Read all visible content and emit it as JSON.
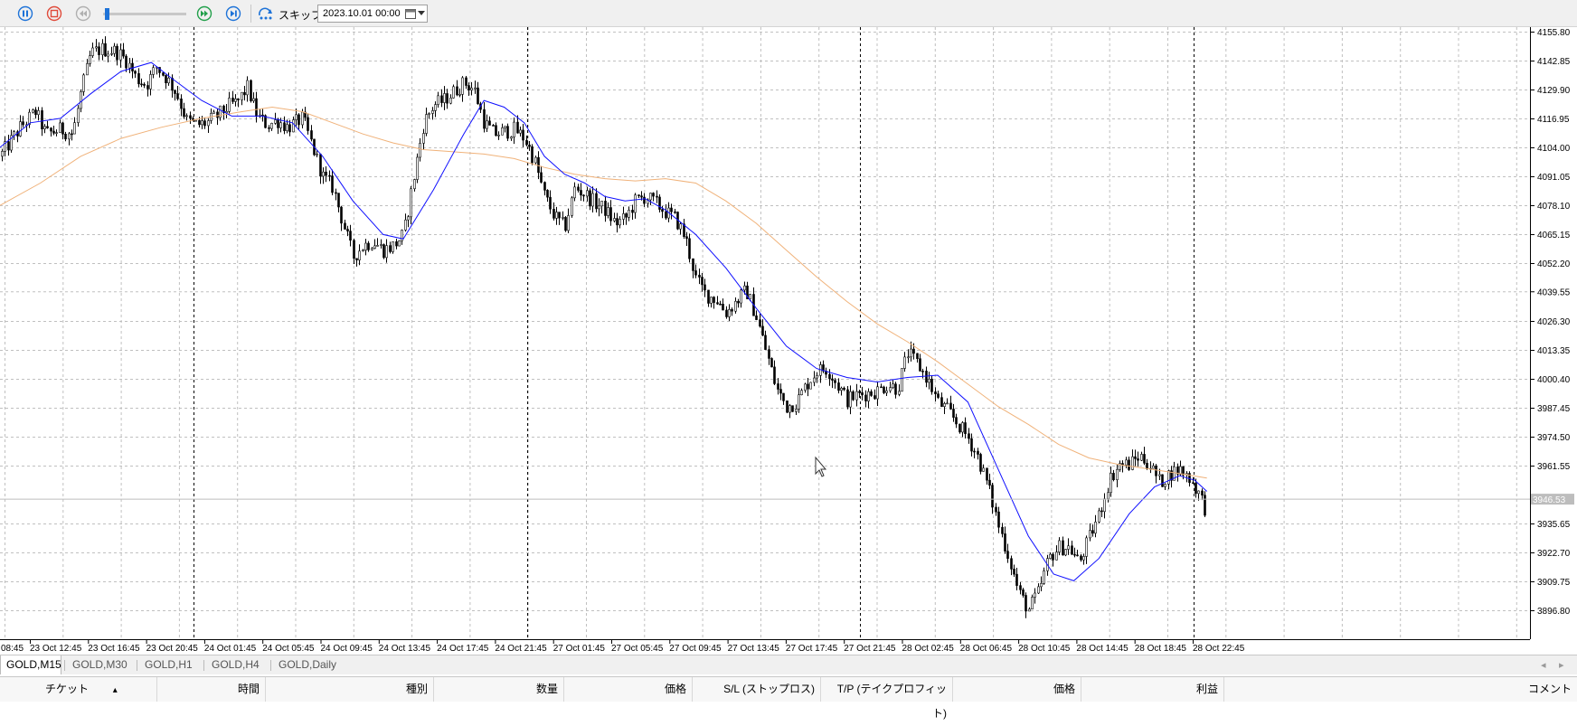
{
  "toolbar": {
    "buttons": [
      {
        "name": "pause-button",
        "icon": "pause-icon",
        "color": "#1e73d8"
      },
      {
        "name": "stop-button",
        "icon": "stop-icon",
        "color": "#e04a3a"
      },
      {
        "name": "rewind-button",
        "icon": "rewind-icon",
        "color": "#b0b0b0"
      },
      {
        "name": "fast-forward-button",
        "icon": "fast-forward-icon",
        "color": "#22a04b"
      },
      {
        "name": "step-forward-button",
        "icon": "step-forward-icon",
        "color": "#1e73d8"
      }
    ],
    "speed_level": 0.02,
    "skip_label": "スキップ",
    "date_value": "2023.10.01 00:00"
  },
  "chart_data": {
    "type": "candlestick",
    "symbol": "GOLD",
    "timeframe": "M15",
    "ylim": [
      3885.0,
      4161.0
    ],
    "y_ticks": [
      "4155.80",
      "4142.85",
      "4129.90",
      "4116.95",
      "4104.00",
      "4091.05",
      "4078.10",
      "4065.15",
      "4052.20",
      "4039.55",
      "4026.30",
      "4013.35",
      "4000.40",
      "3987.45",
      "3974.50",
      "3961.55",
      "3935.65",
      "3922.70",
      "3909.75",
      "3896.80"
    ],
    "current_price": "3946.53",
    "current_price_value": 3946.53,
    "x_tick_labels": [
      "08:45",
      "23 Oct 12:45",
      "23 Oct 16:45",
      "23 Oct 20:45",
      "24 Oct 01:45",
      "24 Oct 05:45",
      "24 Oct 09:45",
      "24 Oct 13:45",
      "24 Oct 17:45",
      "24 Oct 21:45",
      "27 Oct 01:45",
      "27 Oct 05:45",
      "27 Oct 09:45",
      "27 Oct 13:45",
      "27 Oct 17:45",
      "27 Oct 21:45",
      "28 Oct 02:45",
      "28 Oct 06:45",
      "28 Oct 10:45",
      "28 Oct 14:45",
      "28 Oct 18:45",
      "28 Oct 22:45"
    ],
    "close_path": [
      [
        0,
        4100
      ],
      [
        20,
        4113
      ],
      [
        35,
        4120
      ],
      [
        45,
        4110
      ],
      [
        60,
        4112
      ],
      [
        72,
        4110
      ],
      [
        80,
        4128
      ],
      [
        90,
        4146
      ],
      [
        100,
        4148
      ],
      [
        115,
        4147
      ],
      [
        125,
        4143
      ],
      [
        135,
        4135
      ],
      [
        145,
        4132
      ],
      [
        155,
        4140
      ],
      [
        165,
        4135
      ],
      [
        175,
        4128
      ],
      [
        185,
        4116
      ],
      [
        195,
        4114
      ],
      [
        205,
        4115
      ],
      [
        215,
        4118
      ],
      [
        228,
        4123
      ],
      [
        235,
        4124
      ],
      [
        245,
        4131
      ],
      [
        255,
        4118
      ],
      [
        265,
        4114
      ],
      [
        275,
        4116
      ],
      [
        285,
        4113
      ],
      [
        300,
        4117
      ],
      [
        310,
        4104
      ],
      [
        320,
        4091
      ],
      [
        330,
        4086
      ],
      [
        340,
        4070
      ],
      [
        350,
        4055
      ],
      [
        360,
        4060
      ],
      [
        370,
        4062
      ],
      [
        380,
        4058
      ],
      [
        390,
        4060
      ],
      [
        400,
        4065
      ],
      [
        410,
        4090
      ],
      [
        420,
        4115
      ],
      [
        430,
        4123
      ],
      [
        440,
        4125
      ],
      [
        450,
        4129
      ],
      [
        460,
        4133
      ],
      [
        470,
        4130
      ],
      [
        480,
        4115
      ],
      [
        490,
        4110
      ],
      [
        500,
        4111
      ],
      [
        510,
        4112
      ],
      [
        520,
        4108
      ],
      [
        530,
        4098
      ],
      [
        540,
        4082
      ],
      [
        550,
        4073
      ],
      [
        560,
        4068
      ],
      [
        570,
        4086
      ],
      [
        580,
        4083
      ],
      [
        590,
        4079
      ],
      [
        600,
        4076
      ],
      [
        610,
        4070
      ],
      [
        620,
        4072
      ],
      [
        630,
        4080
      ],
      [
        640,
        4082
      ],
      [
        650,
        4079
      ],
      [
        660,
        4075
      ],
      [
        670,
        4072
      ],
      [
        680,
        4063
      ],
      [
        690,
        4045
      ],
      [
        700,
        4038
      ],
      [
        710,
        4036
      ],
      [
        720,
        4030
      ],
      [
        730,
        4035
      ],
      [
        740,
        4040
      ],
      [
        750,
        4028
      ],
      [
        760,
        4012
      ],
      [
        770,
        3996
      ],
      [
        780,
        3988
      ],
      [
        790,
        3990
      ],
      [
        800,
        3998
      ],
      [
        810,
        4004
      ],
      [
        820,
        4005
      ],
      [
        830,
        3998
      ],
      [
        840,
        3991
      ],
      [
        850,
        3993
      ],
      [
        860,
        3994
      ],
      [
        870,
        3995
      ],
      [
        880,
        3998
      ],
      [
        890,
        3996
      ],
      [
        900,
        4012
      ],
      [
        910,
        4007
      ],
      [
        920,
        4000
      ],
      [
        930,
        3990
      ],
      [
        940,
        3986
      ],
      [
        950,
        3980
      ],
      [
        960,
        3974
      ],
      [
        970,
        3965
      ],
      [
        980,
        3952
      ],
      [
        990,
        3935
      ],
      [
        1000,
        3921
      ],
      [
        1010,
        3905
      ],
      [
        1020,
        3897
      ],
      [
        1030,
        3905
      ],
      [
        1040,
        3920
      ],
      [
        1050,
        3925
      ],
      [
        1060,
        3925
      ],
      [
        1070,
        3918
      ],
      [
        1080,
        3929
      ],
      [
        1090,
        3940
      ],
      [
        1100,
        3955
      ],
      [
        1110,
        3962
      ],
      [
        1120,
        3962
      ],
      [
        1130,
        3966
      ],
      [
        1140,
        3962
      ],
      [
        1150,
        3954
      ],
      [
        1160,
        3958
      ],
      [
        1170,
        3960
      ],
      [
        1180,
        3956
      ],
      [
        1190,
        3948
      ],
      [
        1197,
        3940
      ]
    ],
    "ma_fast": [
      [
        0,
        4104
      ],
      [
        30,
        4115
      ],
      [
        60,
        4117
      ],
      [
        90,
        4128
      ],
      [
        120,
        4138
      ],
      [
        150,
        4142
      ],
      [
        170,
        4135
      ],
      [
        200,
        4125
      ],
      [
        230,
        4118
      ],
      [
        260,
        4118
      ],
      [
        290,
        4115
      ],
      [
        320,
        4100
      ],
      [
        350,
        4080
      ],
      [
        380,
        4065
      ],
      [
        400,
        4063
      ],
      [
        430,
        4085
      ],
      [
        460,
        4110
      ],
      [
        480,
        4125
      ],
      [
        500,
        4122
      ],
      [
        520,
        4115
      ],
      [
        540,
        4100
      ],
      [
        560,
        4092
      ],
      [
        580,
        4088
      ],
      [
        600,
        4082
      ],
      [
        620,
        4080
      ],
      [
        640,
        4081
      ],
      [
        660,
        4076
      ],
      [
        690,
        4065
      ],
      [
        720,
        4050
      ],
      [
        750,
        4032
      ],
      [
        780,
        4015
      ],
      [
        810,
        4005
      ],
      [
        840,
        4001
      ],
      [
        870,
        3999
      ],
      [
        900,
        4001
      ],
      [
        930,
        4002
      ],
      [
        960,
        3990
      ],
      [
        990,
        3960
      ],
      [
        1020,
        3930
      ],
      [
        1045,
        3913
      ],
      [
        1065,
        3910
      ],
      [
        1090,
        3920
      ],
      [
        1120,
        3940
      ],
      [
        1145,
        3952
      ],
      [
        1170,
        3957
      ],
      [
        1185,
        3955
      ],
      [
        1197,
        3950
      ]
    ],
    "ma_slow": [
      [
        0,
        4078
      ],
      [
        40,
        4088
      ],
      [
        80,
        4100
      ],
      [
        120,
        4108
      ],
      [
        160,
        4113
      ],
      [
        200,
        4117
      ],
      [
        240,
        4120
      ],
      [
        270,
        4122
      ],
      [
        300,
        4120
      ],
      [
        330,
        4115
      ],
      [
        360,
        4110
      ],
      [
        390,
        4106
      ],
      [
        420,
        4103
      ],
      [
        450,
        4102
      ],
      [
        480,
        4101
      ],
      [
        510,
        4099
      ],
      [
        540,
        4095
      ],
      [
        570,
        4092
      ],
      [
        600,
        4090
      ],
      [
        630,
        4089
      ],
      [
        660,
        4090
      ],
      [
        690,
        4088
      ],
      [
        720,
        4080
      ],
      [
        750,
        4070
      ],
      [
        780,
        4058
      ],
      [
        810,
        4046
      ],
      [
        840,
        4035
      ],
      [
        870,
        4025
      ],
      [
        900,
        4017
      ],
      [
        930,
        4008
      ],
      [
        960,
        3998
      ],
      [
        990,
        3988
      ],
      [
        1020,
        3980
      ],
      [
        1050,
        3971
      ],
      [
        1080,
        3965
      ],
      [
        1110,
        3962
      ],
      [
        1140,
        3960
      ],
      [
        1170,
        3958
      ],
      [
        1197,
        3956
      ]
    ],
    "colors": {
      "ma_fast": "#1010ff",
      "ma_slow": "#f0b27a",
      "candle": "#000000",
      "grid": "#c0c0c0",
      "session_separator": "#000000",
      "price_tag": "#bdbdbd"
    },
    "grid": true
  },
  "symbol_tabs": [
    {
      "label": "GOLD,M15",
      "active": true
    },
    {
      "label": "GOLD,M30",
      "active": false
    },
    {
      "label": "GOLD,H1",
      "active": false
    },
    {
      "label": "GOLD,H4",
      "active": false
    },
    {
      "label": "GOLD,Daily",
      "active": false
    }
  ],
  "terminal": {
    "columns": [
      {
        "label": "チケット",
        "align": "left"
      },
      {
        "label": "時間",
        "align": "right"
      },
      {
        "label": "種別",
        "align": "right"
      },
      {
        "label": "数量",
        "align": "right"
      },
      {
        "label": "価格",
        "align": "right"
      },
      {
        "label": "S/L (ストップロス)",
        "align": "right"
      },
      {
        "label": "T/P (テイクプロフィット)",
        "align": "right"
      },
      {
        "label": "価格",
        "align": "right"
      },
      {
        "label": "利益",
        "align": "right"
      },
      {
        "label": "コメント",
        "align": "right"
      }
    ]
  }
}
